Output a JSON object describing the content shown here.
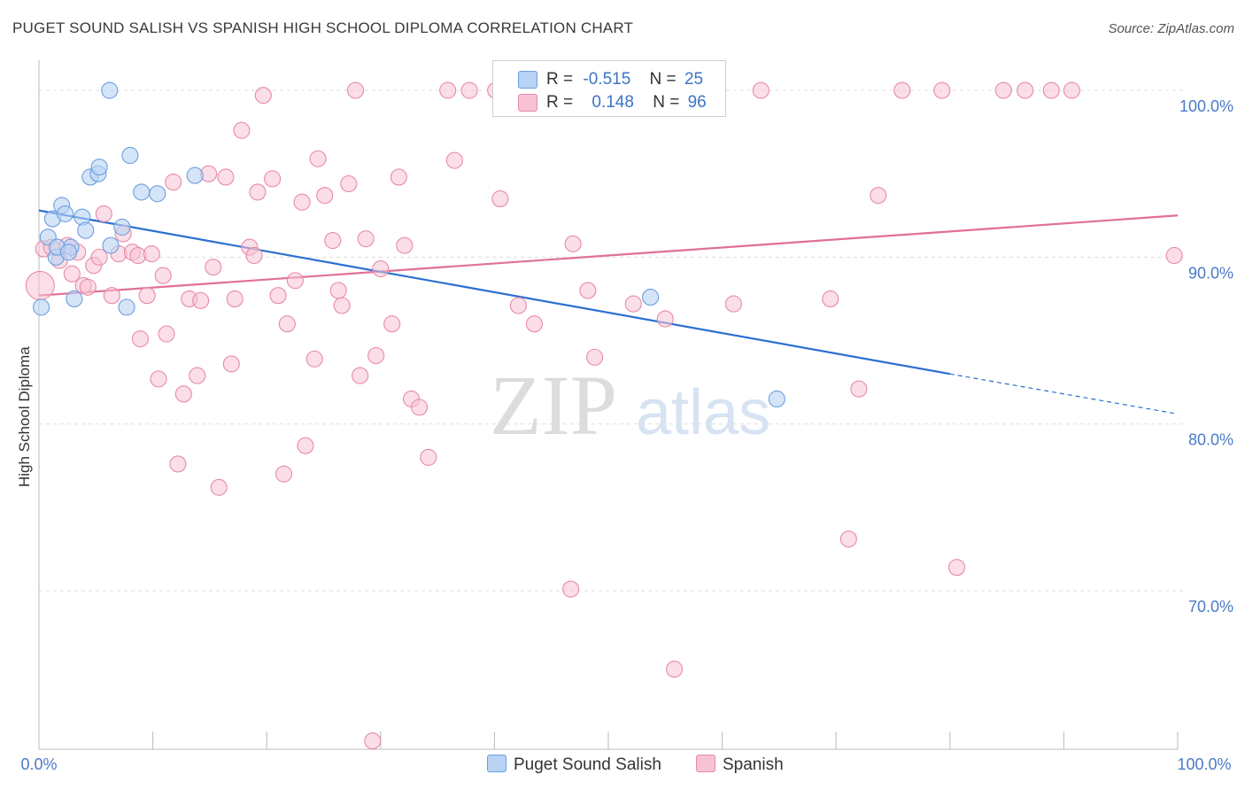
{
  "title": "PUGET SOUND SALISH VS SPANISH HIGH SCHOOL DIPLOMA CORRELATION CHART",
  "source": "Source: ZipAtlas.com",
  "watermark": {
    "zip": "ZIP",
    "atlas": "atlas"
  },
  "colors": {
    "blue": "#6b9ee0",
    "blue_fill": "#b9d3f4",
    "blue_line": "#2a6fd1",
    "pink": "#e88aa8",
    "pink_fill": "#f7c3d3",
    "pink_line": "#e07097",
    "grid": "#dddddd",
    "axis_text": "#4a7ac6"
  },
  "legend": {
    "rows": [
      {
        "r_label": "R =",
        "r_value": "-0.515",
        "n_label": "N =",
        "n_value": "25"
      },
      {
        "r_label": "R =",
        "r_value": "0.148",
        "n_label": "N =",
        "n_value": "96"
      }
    ],
    "bottom": [
      "Puget Sound Salish",
      "Spanish"
    ]
  },
  "chart_data": {
    "type": "scatter",
    "title": "PUGET SOUND SALISH VS SPANISH HIGH SCHOOL DIPLOMA CORRELATION CHART",
    "xlabel": "",
    "ylabel": "High School Diploma",
    "xlim": [
      0,
      100
    ],
    "ylim": [
      60.5,
      101.7
    ],
    "x_tick_labels": [
      "0.0%",
      "100.0%"
    ],
    "y_ticks": [
      70,
      80,
      90,
      100
    ],
    "y_tick_labels": [
      "70.0%",
      "80.0%",
      "90.0%",
      "100.0%"
    ],
    "grid": true,
    "legend_position": "top-center",
    "series": [
      {
        "name": "Puget Sound Salish",
        "r": -0.515,
        "n": 25,
        "trend": {
          "x0": 0,
          "y0": 92.8,
          "x1": 80,
          "y1": 83.0,
          "dash_to_x": 100,
          "dash_to_y": 80.6
        },
        "points": [
          [
            0.2,
            87.0
          ],
          [
            0.8,
            91.2
          ],
          [
            1.2,
            92.3
          ],
          [
            1.5,
            90.0
          ],
          [
            2.0,
            93.1
          ],
          [
            2.3,
            92.6
          ],
          [
            2.8,
            90.6
          ],
          [
            3.1,
            87.5
          ],
          [
            3.8,
            92.4
          ],
          [
            4.1,
            91.6
          ],
          [
            4.5,
            94.8
          ],
          [
            5.2,
            95.0
          ],
          [
            5.3,
            95.4
          ],
          [
            6.3,
            90.7
          ],
          [
            7.3,
            91.8
          ],
          [
            7.7,
            87.0
          ],
          [
            8.0,
            96.1
          ],
          [
            9.0,
            93.9
          ],
          [
            10.4,
            93.8
          ],
          [
            13.7,
            94.9
          ],
          [
            1.6,
            90.6
          ],
          [
            2.6,
            90.3
          ],
          [
            6.2,
            100.0
          ],
          [
            53.7,
            87.6
          ],
          [
            64.8,
            81.5
          ]
        ]
      },
      {
        "name": "Spanish",
        "r": 0.148,
        "n": 96,
        "trend": {
          "x0": 0,
          "y0": 87.7,
          "x1": 100,
          "y1": 92.5
        },
        "points": [
          [
            0.4,
            90.5
          ],
          [
            1.1,
            90.6
          ],
          [
            1.8,
            89.8
          ],
          [
            2.5,
            90.7
          ],
          [
            2.9,
            89.0
          ],
          [
            3.4,
            90.3
          ],
          [
            3.9,
            88.3
          ],
          [
            4.3,
            88.2
          ],
          [
            4.8,
            89.5
          ],
          [
            5.3,
            90.0
          ],
          [
            5.7,
            92.6
          ],
          [
            6.4,
            87.7
          ],
          [
            7.0,
            90.2
          ],
          [
            7.4,
            91.4
          ],
          [
            8.2,
            90.3
          ],
          [
            8.7,
            90.1
          ],
          [
            8.9,
            85.1
          ],
          [
            9.5,
            87.7
          ],
          [
            9.9,
            90.2
          ],
          [
            10.5,
            82.7
          ],
          [
            10.9,
            88.9
          ],
          [
            11.2,
            85.4
          ],
          [
            11.8,
            94.5
          ],
          [
            12.2,
            77.6
          ],
          [
            12.7,
            81.8
          ],
          [
            13.2,
            87.5
          ],
          [
            13.9,
            82.9
          ],
          [
            14.2,
            87.4
          ],
          [
            14.9,
            95.0
          ],
          [
            15.3,
            89.4
          ],
          [
            15.8,
            76.2
          ],
          [
            16.4,
            94.8
          ],
          [
            16.9,
            83.6
          ],
          [
            17.2,
            87.5
          ],
          [
            17.8,
            97.6
          ],
          [
            18.5,
            90.6
          ],
          [
            18.9,
            90.1
          ],
          [
            19.2,
            93.9
          ],
          [
            19.7,
            99.7
          ],
          [
            20.5,
            94.7
          ],
          [
            21.0,
            87.7
          ],
          [
            21.5,
            77.0
          ],
          [
            21.8,
            86.0
          ],
          [
            22.5,
            88.6
          ],
          [
            23.1,
            93.3
          ],
          [
            23.4,
            78.7
          ],
          [
            24.2,
            83.9
          ],
          [
            24.5,
            95.9
          ],
          [
            25.1,
            93.7
          ],
          [
            25.8,
            91.0
          ],
          [
            26.3,
            88.0
          ],
          [
            26.6,
            87.1
          ],
          [
            27.2,
            94.4
          ],
          [
            27.8,
            100.0
          ],
          [
            28.2,
            82.9
          ],
          [
            28.7,
            91.1
          ],
          [
            29.3,
            61.0
          ],
          [
            29.6,
            84.1
          ],
          [
            30.0,
            89.3
          ],
          [
            31.0,
            86.0
          ],
          [
            31.6,
            94.8
          ],
          [
            32.1,
            90.7
          ],
          [
            32.7,
            81.5
          ],
          [
            33.4,
            81.0
          ],
          [
            34.2,
            78.0
          ],
          [
            35.9,
            100.0
          ],
          [
            36.5,
            95.8
          ],
          [
            37.8,
            100.0
          ],
          [
            40.1,
            100.0
          ],
          [
            40.5,
            93.5
          ],
          [
            42.1,
            87.1
          ],
          [
            46.7,
            70.1
          ],
          [
            46.9,
            90.8
          ],
          [
            48.2,
            88.0
          ],
          [
            48.8,
            84.0
          ],
          [
            52.2,
            87.2
          ],
          [
            52.6,
            100.0
          ],
          [
            55.0,
            86.3
          ],
          [
            55.8,
            65.3
          ],
          [
            56.0,
            100.0
          ],
          [
            63.4,
            100.0
          ],
          [
            69.5,
            87.5
          ],
          [
            71.1,
            73.1
          ],
          [
            72.0,
            82.1
          ],
          [
            73.7,
            93.7
          ],
          [
            75.8,
            100.0
          ],
          [
            79.3,
            100.0
          ],
          [
            80.6,
            71.4
          ],
          [
            84.7,
            100.0
          ],
          [
            86.6,
            100.0
          ],
          [
            88.9,
            100.0
          ],
          [
            90.7,
            100.0
          ],
          [
            99.7,
            90.1
          ],
          [
            61.0,
            87.2
          ],
          [
            43.5,
            86.0
          ],
          [
            0.1,
            88.3
          ]
        ]
      }
    ]
  }
}
